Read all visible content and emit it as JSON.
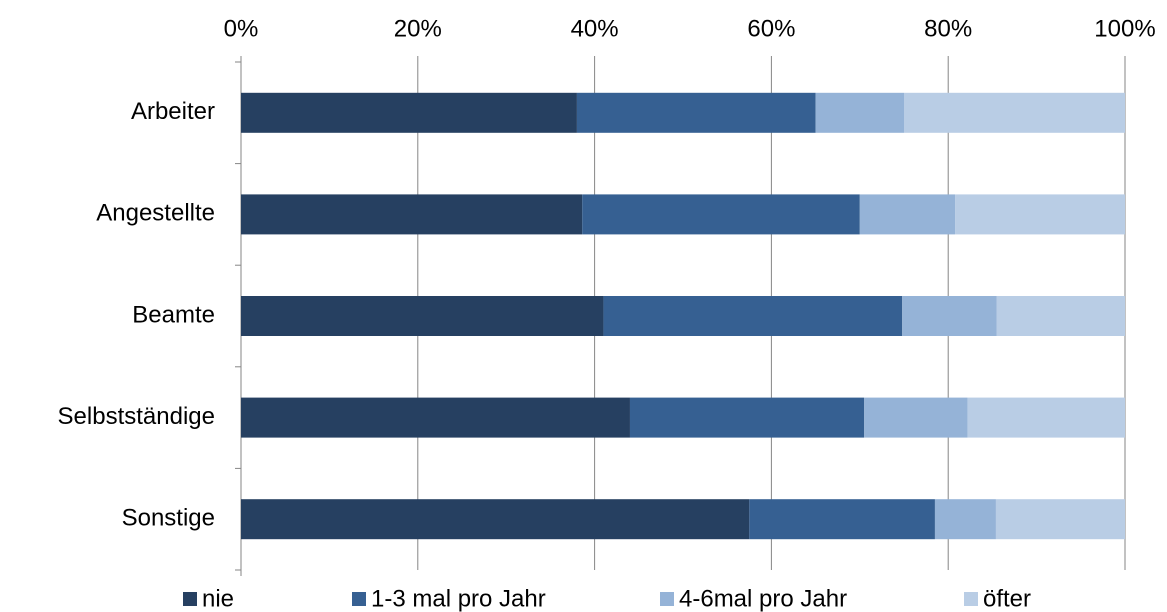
{
  "chart_data": {
    "type": "stacked-barh",
    "categories": [
      "Arbeiter",
      "Angestellte",
      "Beamte",
      "Selbstständige",
      "Sonstige"
    ],
    "series": [
      {
        "name": "nie",
        "color": "#264061",
        "values": [
          38,
          38.6,
          41,
          44,
          57.5
        ]
      },
      {
        "name": "1-3 mal pro Jahr",
        "color": "#366092",
        "values": [
          27,
          31.4,
          33.8,
          26.5,
          21
        ]
      },
      {
        "name": "4-6mal pro Jahr",
        "color": "#95b3d7",
        "values": [
          10,
          10.8,
          10.7,
          11.7,
          6.9
        ]
      },
      {
        "name": "öfter",
        "color": "#b9cde5",
        "values": [
          25,
          19.2,
          14.5,
          17.8,
          14.6
        ]
      }
    ],
    "xlim": [
      0,
      100
    ],
    "xticks": [
      {
        "value": 0,
        "label": "0%"
      },
      {
        "value": 20,
        "label": "20%"
      },
      {
        "value": 40,
        "label": "40%"
      },
      {
        "value": 60,
        "label": "60%"
      },
      {
        "value": 80,
        "label": "80%"
      },
      {
        "value": 100,
        "label": "100%"
      }
    ],
    "grid": true,
    "legend": "bottom"
  }
}
